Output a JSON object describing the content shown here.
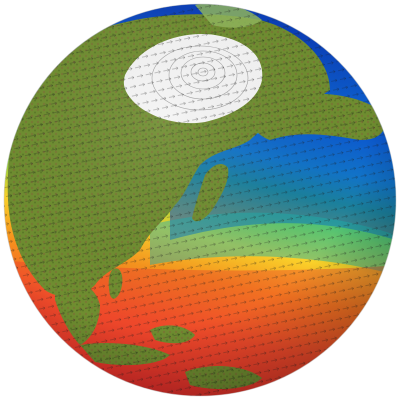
{
  "scene": {
    "background_color": "#ffffff",
    "subject": "globe",
    "ocean_color_ramp": [
      "#d8242a",
      "#f2562a",
      "#f7941d",
      "#fbd22a",
      "#9bd33a",
      "#2fc46a",
      "#1aa6c9",
      "#0f6fd6",
      "#0a3fb8"
    ],
    "land_colors": [
      "#6b8f2e",
      "#7f9a3a",
      "#8b7a3a",
      "#5b7a2a"
    ],
    "sea_ice_color": "#f4f4f4",
    "overlay": "velocity-vectors"
  }
}
